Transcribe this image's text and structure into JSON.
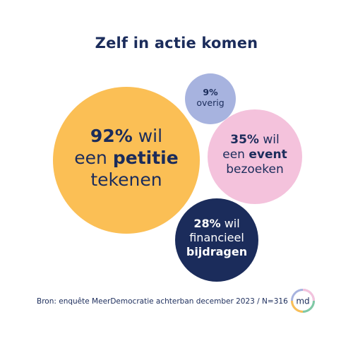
{
  "title": "Zelf in actie komen",
  "bubbles": {
    "petitie": {
      "pct": "92%",
      "line1_rest": " wil",
      "line2_pre": "een ",
      "line2_bold": "petitie",
      "line3": "tekenen",
      "color": "#fbbf55"
    },
    "overig": {
      "pct": "9%",
      "line2": "overig",
      "color": "#a7b3df"
    },
    "event": {
      "pct": "35%",
      "line1_rest": " wil",
      "line2_pre": "een ",
      "line2_bold": "event",
      "line3": "bezoeken",
      "color": "#f4c2dc"
    },
    "financieel": {
      "pct": "28%",
      "line1_rest": " wil",
      "line2": "financieel",
      "line3_bold": "bijdragen",
      "color": "#1b2c5b"
    }
  },
  "source": "Bron: enquête MeerDemocratie achterban december 2023 / N=316",
  "logo": {
    "text": "md"
  },
  "colors": {
    "navy": "#1b2c5b",
    "yellow": "#fbbf55",
    "pink": "#f4c2dc",
    "lavender": "#a7b3df"
  },
  "chart_data": {
    "type": "bubble",
    "title": "Zelf in actie komen",
    "categories": [
      "een petitie tekenen",
      "een event bezoeken",
      "financieel bijdragen",
      "overig"
    ],
    "values": [
      92,
      35,
      28,
      9
    ],
    "unit": "%",
    "source": "Bron: enquête MeerDemocratie achterban december 2023 / N=316"
  }
}
